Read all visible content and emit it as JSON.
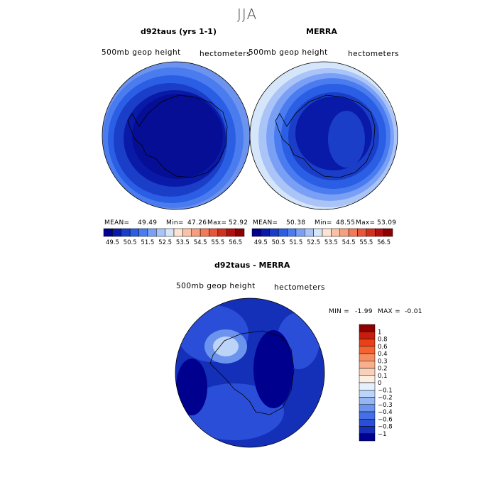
{
  "title": "JJA",
  "panels": [
    {
      "title": "d92taus (yrs 1-1)",
      "variable": "500mb geop height",
      "units": "hectometers",
      "stats": {
        "mean_label": "MEAN=",
        "mean": "49.49",
        "min_label": "Min=",
        "min": "47.26",
        "max_label": "Max=",
        "max": "52.92"
      }
    },
    {
      "title": "MERRA",
      "variable": "500mb geop height",
      "units": "hectometers",
      "stats": {
        "mean_label": "MEAN=",
        "mean": "50.38",
        "min_label": "Min=",
        "min": "48.55",
        "max_label": "Max=",
        "max": "53.09"
      }
    },
    {
      "title": "d92taus - MERRA",
      "variable": "500mb geop height",
      "units": "hectometers",
      "stats": {
        "min_label": "MIN =",
        "min": "-1.99",
        "max_label": "MAX =",
        "max": "-0.01"
      }
    }
  ],
  "chart_data": [
    {
      "type": "heatmap",
      "title": "d92taus (yrs 1-1)",
      "projection": "south polar stereographic",
      "variable": "500mb geop height",
      "units": "hectometers",
      "mean": 49.49,
      "min": 47.26,
      "max": 52.92,
      "colorbar_ticks": [
        "49.5",
        "50.5",
        "51.5",
        "52.5",
        "53.5",
        "54.5",
        "55.5",
        "56.5"
      ],
      "colorbar_colors": [
        "#00008e",
        "#0a1aa8",
        "#1a3ec8",
        "#2a5ee4",
        "#4a7cf0",
        "#7aa0f6",
        "#aac4f8",
        "#d6e6fa",
        "#fde3d2",
        "#f9c2a6",
        "#f69e7e",
        "#f27a58",
        "#e8563a",
        "#d2301e",
        "#b21010",
        "#8e0000"
      ],
      "description_levels": {
        "pole": 49.0,
        "mid_ring": 51.0,
        "edge": 52.9
      }
    },
    {
      "type": "heatmap",
      "title": "MERRA",
      "projection": "south polar stereographic",
      "variable": "500mb geop height",
      "units": "hectometers",
      "mean": 50.38,
      "min": 48.55,
      "max": 53.09,
      "colorbar_ticks": [
        "49.5",
        "50.5",
        "51.5",
        "52.5",
        "53.5",
        "54.5",
        "55.5",
        "56.5"
      ],
      "colorbar_colors": [
        "#00008e",
        "#0a1aa8",
        "#1a3ec8",
        "#2a5ee4",
        "#4a7cf0",
        "#7aa0f6",
        "#aac4f8",
        "#d6e6fa",
        "#fde3d2",
        "#f9c2a6",
        "#f69e7e",
        "#f27a58",
        "#e8563a",
        "#d2301e",
        "#b21010",
        "#8e0000"
      ]
    },
    {
      "type": "heatmap",
      "title": "d92taus - MERRA",
      "projection": "south polar stereographic",
      "variable": "500mb geop height",
      "units": "hectometers",
      "min": -1.99,
      "max": -0.01,
      "colorbar_ticks": [
        "1",
        "0.8",
        "0.6",
        "0.4",
        "0.3",
        "0.2",
        "0.1",
        "0",
        "-0.1",
        "-0.2",
        "-0.3",
        "-0.4",
        "-0.6",
        "-0.8",
        "-1"
      ],
      "colorbar_colors": [
        "#8e0000",
        "#c81c0c",
        "#e84018",
        "#f46430",
        "#f68c60",
        "#f8b08c",
        "#fad0b8",
        "#fdeee4",
        "#e6f0fc",
        "#bcd4f8",
        "#94b6f4",
        "#6c94ee",
        "#4470e6",
        "#2a4ed8",
        "#1430b8",
        "#00008e"
      ]
    }
  ],
  "colors": {
    "deep": "#00008e",
    "navy": "#0a1aa8",
    "blue": "#1a3ec8",
    "mid": "#2a5ee4",
    "light": "#7aa0f6",
    "pale": "#d6e6fa"
  }
}
